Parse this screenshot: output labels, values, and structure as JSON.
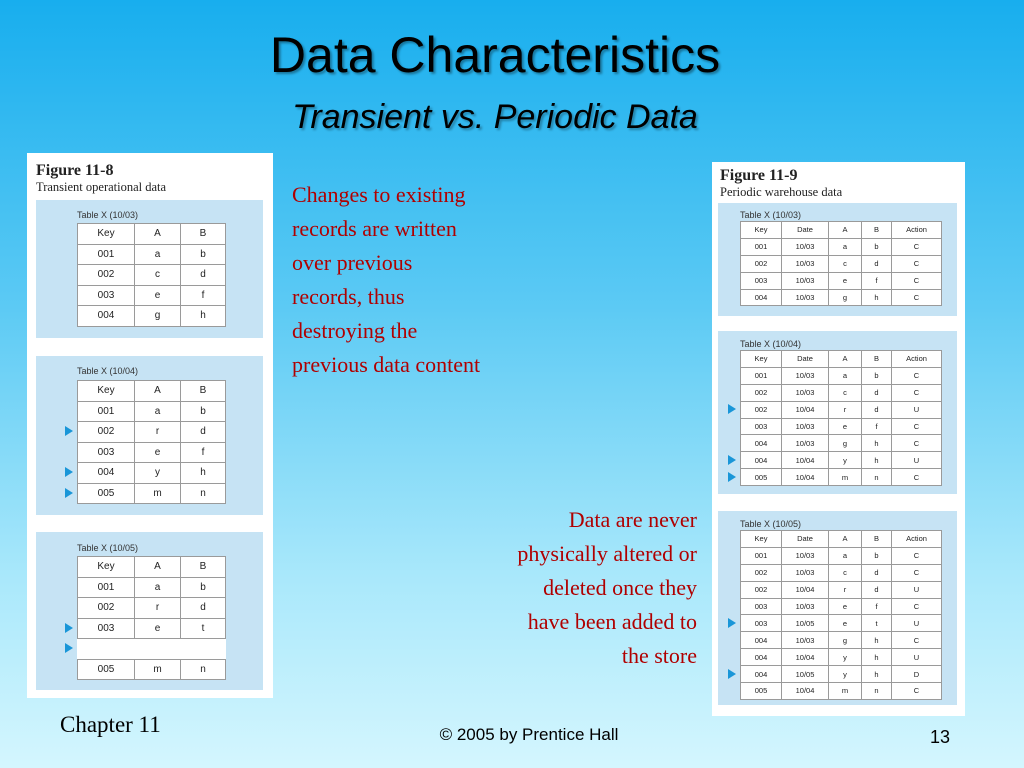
{
  "title": "Data Characteristics",
  "subtitle": "Transient vs. Periodic Data",
  "left_figure": {
    "label": "Figure 11-8",
    "caption": "Transient operational data",
    "tables": [
      {
        "title": "Table X (10/03)",
        "header": [
          "Key",
          "A",
          "B"
        ],
        "rows": [
          [
            "001",
            "a",
            "b"
          ],
          [
            "002",
            "c",
            "d"
          ],
          [
            "003",
            "e",
            "f"
          ],
          [
            "004",
            "g",
            "h"
          ]
        ],
        "arrow_rows": []
      },
      {
        "title": "Table X (10/04)",
        "header": [
          "Key",
          "A",
          "B"
        ],
        "rows": [
          [
            "001",
            "a",
            "b"
          ],
          [
            "002",
            "r",
            "d"
          ],
          [
            "003",
            "e",
            "f"
          ],
          [
            "004",
            "y",
            "h"
          ],
          [
            "005",
            "m",
            "n"
          ]
        ],
        "arrow_rows": [
          1,
          3,
          4
        ]
      },
      {
        "title": "Table X (10/05)",
        "header": [
          "Key",
          "A",
          "B"
        ],
        "rows": [
          [
            "001",
            "a",
            "b"
          ],
          [
            "002",
            "r",
            "d"
          ],
          [
            "003",
            "e",
            "t"
          ],
          null,
          [
            "005",
            "m",
            "n"
          ]
        ],
        "arrow_rows": [
          2,
          3
        ]
      }
    ]
  },
  "left_text": {
    "lines": [
      "Changes to existing",
      "records are written",
      "over previous",
      "records, thus",
      "destroying the",
      "previous data content"
    ]
  },
  "right_figure": {
    "label": "Figure 11-9",
    "caption": "Periodic warehouse data",
    "tables": [
      {
        "title": "Table X (10/03)",
        "header": [
          "Key",
          "Date",
          "A",
          "B",
          "Action"
        ],
        "rows": [
          [
            "001",
            "10/03",
            "a",
            "b",
            "C"
          ],
          [
            "002",
            "10/03",
            "c",
            "d",
            "C"
          ],
          [
            "003",
            "10/03",
            "e",
            "f",
            "C"
          ],
          [
            "004",
            "10/03",
            "g",
            "h",
            "C"
          ]
        ],
        "arrow_rows": []
      },
      {
        "title": "Table X (10/04)",
        "header": [
          "Key",
          "Date",
          "A",
          "B",
          "Action"
        ],
        "rows": [
          [
            "001",
            "10/03",
            "a",
            "b",
            "C"
          ],
          [
            "002",
            "10/03",
            "c",
            "d",
            "C"
          ],
          [
            "002",
            "10/04",
            "r",
            "d",
            "U"
          ],
          [
            "003",
            "10/03",
            "e",
            "f",
            "C"
          ],
          [
            "004",
            "10/03",
            "g",
            "h",
            "C"
          ],
          [
            "004",
            "10/04",
            "y",
            "h",
            "U"
          ],
          [
            "005",
            "10/04",
            "m",
            "n",
            "C"
          ]
        ],
        "arrow_rows": [
          2,
          5,
          6
        ]
      },
      {
        "title": "Table X (10/05)",
        "header": [
          "Key",
          "Date",
          "A",
          "B",
          "Action"
        ],
        "rows": [
          [
            "001",
            "10/03",
            "a",
            "b",
            "C"
          ],
          [
            "002",
            "10/03",
            "c",
            "d",
            "C"
          ],
          [
            "002",
            "10/04",
            "r",
            "d",
            "U"
          ],
          [
            "003",
            "10/03",
            "e",
            "f",
            "C"
          ],
          [
            "003",
            "10/05",
            "e",
            "t",
            "U"
          ],
          [
            "004",
            "10/03",
            "g",
            "h",
            "C"
          ],
          [
            "004",
            "10/04",
            "y",
            "h",
            "U"
          ],
          [
            "004",
            "10/05",
            "y",
            "h",
            "D"
          ],
          [
            "005",
            "10/04",
            "m",
            "n",
            "C"
          ]
        ],
        "arrow_rows": [
          4,
          7
        ]
      }
    ]
  },
  "right_text": {
    "lines": [
      "Data are never",
      "physically altered or",
      "deleted once they",
      "have been added to",
      "the store"
    ]
  },
  "footer": {
    "chapter": "Chapter 11",
    "copyright": "© 2005 by Prentice Hall",
    "page": "13"
  }
}
